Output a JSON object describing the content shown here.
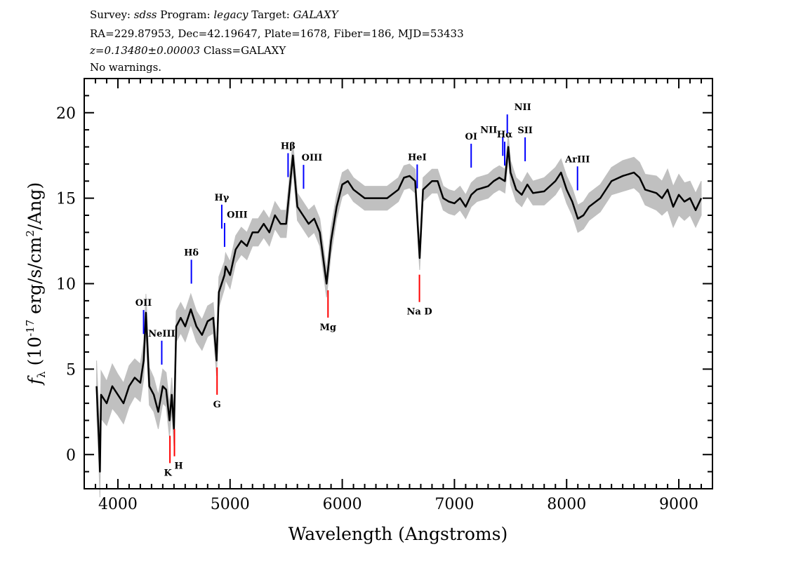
{
  "header": {
    "survey_label": "Survey:",
    "survey": "sdss",
    "program_label": "Program:",
    "program": "legacy",
    "target_label": "Target:",
    "target": "GALAXY",
    "coords": "RA=229.87953, Dec=42.19647, Plate=1678, Fiber=186, MJD=53433",
    "redshift": "z=0.13480±0.00003",
    "class": "Class=GALAXY",
    "warnings": "No warnings."
  },
  "chart_data": {
    "type": "line",
    "title": "",
    "xlabel": "Wavelength (Angstroms)",
    "ylabel": "f_λ (10^-17 erg/s/cm^2/Ang)",
    "xlim": [
      3700,
      9300
    ],
    "ylim": [
      -2,
      22
    ],
    "xticks": [
      4000,
      5000,
      6000,
      7000,
      8000,
      9000
    ],
    "yticks": [
      0,
      5,
      10,
      15,
      20
    ],
    "grid": false,
    "colors": {
      "flux": "#000000",
      "error_band": "#c0c0c0",
      "emission": "#0000ff",
      "absorption": "#ff0000"
    },
    "series": [
      {
        "x": [
          3810,
          3830,
          3840,
          3850,
          3900,
          3950,
          4000,
          4050,
          4100,
          4150,
          4200,
          4230,
          4250,
          4280,
          4320,
          4360,
          4400,
          4430,
          4460,
          4480,
          4500,
          4520,
          4560,
          4600,
          4650,
          4700,
          4750,
          4800,
          4850,
          4880,
          4900,
          4950,
          4960,
          5000,
          5050,
          5100,
          5150,
          5200,
          5250,
          5300,
          5350,
          5400,
          5450,
          5500,
          5560,
          5600,
          5650,
          5700,
          5750,
          5800,
          5860,
          5900,
          5950,
          6000,
          6050,
          6100,
          6200,
          6300,
          6400,
          6500,
          6550,
          6600,
          6650,
          6690,
          6720,
          6800,
          6850,
          6900,
          6950,
          7000,
          7050,
          7100,
          7150,
          7200,
          7250,
          7300,
          7350,
          7400,
          7450,
          7480,
          7500,
          7550,
          7600,
          7650,
          7700,
          7800,
          7900,
          7950,
          8000,
          8050,
          8100,
          8150,
          8200,
          8300,
          8400,
          8500,
          8600,
          8650,
          8700,
          8800,
          8850,
          8900,
          8950,
          9000,
          9050,
          9100,
          9150,
          9200
        ],
        "y": [
          4.0,
          1.0,
          -1.0,
          3.5,
          3.0,
          4.0,
          3.5,
          3.0,
          4.0,
          4.5,
          4.2,
          5.5,
          8.3,
          4.0,
          3.5,
          2.5,
          4.0,
          3.8,
          2.0,
          3.5,
          1.5,
          7.5,
          8.0,
          7.5,
          8.5,
          7.5,
          7.0,
          7.8,
          8.0,
          5.5,
          9.5,
          10.5,
          11.0,
          10.5,
          12.0,
          12.5,
          12.2,
          13.0,
          13.0,
          13.5,
          13.0,
          14.0,
          13.5,
          13.5,
          17.5,
          14.5,
          14.0,
          13.5,
          13.8,
          13.0,
          10.0,
          12.5,
          14.5,
          15.8,
          16.0,
          15.5,
          15.0,
          15.0,
          15.0,
          15.5,
          16.2,
          16.3,
          16.0,
          11.5,
          15.5,
          16.0,
          16.0,
          15.0,
          14.8,
          14.7,
          15.0,
          14.5,
          15.2,
          15.5,
          15.6,
          15.7,
          16.0,
          16.2,
          16.0,
          18.0,
          16.5,
          15.5,
          15.2,
          15.8,
          15.3,
          15.4,
          16.0,
          16.5,
          15.5,
          14.8,
          13.8,
          14.0,
          14.5,
          15.0,
          16.0,
          16.3,
          16.5,
          16.2,
          15.5,
          15.3,
          15.0,
          15.5,
          14.5,
          15.2,
          14.8,
          15.0,
          14.3,
          15.0
        ],
        "err": [
          1.5,
          1.5,
          1.5,
          1.4,
          1.3,
          1.3,
          1.2,
          1.2,
          1.2,
          1.1,
          1.1,
          1.1,
          1.1,
          1.1,
          1.0,
          1.0,
          1.0,
          1.0,
          1.0,
          1.0,
          1.0,
          0.9,
          0.9,
          0.9,
          0.9,
          0.9,
          0.9,
          0.9,
          0.9,
          0.9,
          0.9,
          0.8,
          0.8,
          0.8,
          0.8,
          0.8,
          0.8,
          0.8,
          0.8,
          0.8,
          0.8,
          0.8,
          0.8,
          0.8,
          0.8,
          0.8,
          0.8,
          0.8,
          0.8,
          0.8,
          0.8,
          0.8,
          0.7,
          0.7,
          0.7,
          0.7,
          0.7,
          0.7,
          0.7,
          0.7,
          0.7,
          0.7,
          0.7,
          0.7,
          0.7,
          0.7,
          0.7,
          0.7,
          0.7,
          0.7,
          0.7,
          0.7,
          0.7,
          0.7,
          0.7,
          0.7,
          0.7,
          0.7,
          0.7,
          0.7,
          0.7,
          0.7,
          0.7,
          0.7,
          0.7,
          0.8,
          0.8,
          0.8,
          0.8,
          0.8,
          0.8,
          0.8,
          0.8,
          0.8,
          0.8,
          0.9,
          0.9,
          0.9,
          0.9,
          1.0,
          1.0,
          1.2,
          1.2,
          1.2,
          1.1,
          1.0,
          1.0,
          1.0
        ]
      }
    ],
    "lines": [
      {
        "label": "OII",
        "wavelength": 4229,
        "kind": "emission"
      },
      {
        "label": "NeIII",
        "wavelength": 4391,
        "kind": "emission"
      },
      {
        "label": "Hδ",
        "wavelength": 4655,
        "kind": "emission"
      },
      {
        "label": "Hγ",
        "wavelength": 4926,
        "kind": "emission"
      },
      {
        "label": "OIII",
        "wavelength": 4951,
        "kind": "emission"
      },
      {
        "label": "Hβ",
        "wavelength": 5517,
        "kind": "emission"
      },
      {
        "label": "OIII",
        "wavelength": 5655,
        "kind": "emission"
      },
      {
        "label": "HeI",
        "wavelength": 6668,
        "kind": "emission"
      },
      {
        "label": "OI",
        "wavelength": 7149,
        "kind": "emission"
      },
      {
        "label": "NII",
        "wavelength": 7431,
        "kind": "emission"
      },
      {
        "label": "Hα",
        "wavelength": 7448,
        "kind": "emission"
      },
      {
        "label": "NII",
        "wavelength": 7471,
        "kind": "emission"
      },
      {
        "label": "SII",
        "wavelength": 7630,
        "kind": "emission"
      },
      {
        "label": "ArIII",
        "wavelength": 8097,
        "kind": "emission"
      },
      {
        "label": "K",
        "wavelength": 4464,
        "kind": "absorption"
      },
      {
        "label": "H",
        "wavelength": 4504,
        "kind": "absorption"
      },
      {
        "label": "G",
        "wavelength": 4884,
        "kind": "absorption"
      },
      {
        "label": "Mg",
        "wavelength": 5873,
        "kind": "absorption"
      },
      {
        "label": "Na D",
        "wavelength": 6688,
        "kind": "absorption"
      }
    ]
  }
}
